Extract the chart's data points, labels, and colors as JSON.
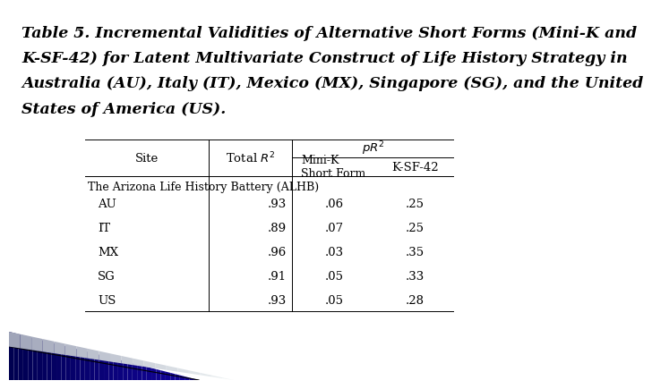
{
  "title_line1": "Table 5. Incremental Validities of Alternative Short Forms (Mini-K and",
  "title_line2": "K-SF-42) for Latent Multivariate Construct of Life History Strategy in",
  "title_line3": "Australia (AU), Italy (IT), Mexico (MX), Singapore (SG), and the United",
  "title_line4": "States of America (US).",
  "title_bold_prefix": "Table 5. ",
  "section_label": "The Arizona Life History Battery (ALHB)",
  "rows": [
    [
      "AU",
      ".93",
      ".06",
      ".25"
    ],
    [
      "IT",
      ".89",
      ".07",
      ".25"
    ],
    [
      "MX",
      ".96",
      ".03",
      ".35"
    ],
    [
      "SG",
      ".91",
      ".05",
      ".33"
    ],
    [
      "US",
      ".93",
      ".05",
      ".28"
    ]
  ],
  "bg_color": "#ffffff",
  "text_color": "#000000",
  "font_size_title": 12.5,
  "font_size_table": 9.5,
  "gradient_colors_dark": [
    "#000033",
    "#000055",
    "#000088",
    "#0000aa"
  ],
  "gradient_colors_light": [
    "#aaaacc",
    "#ccccdd",
    "#ddddee",
    "#eeeeff"
  ]
}
